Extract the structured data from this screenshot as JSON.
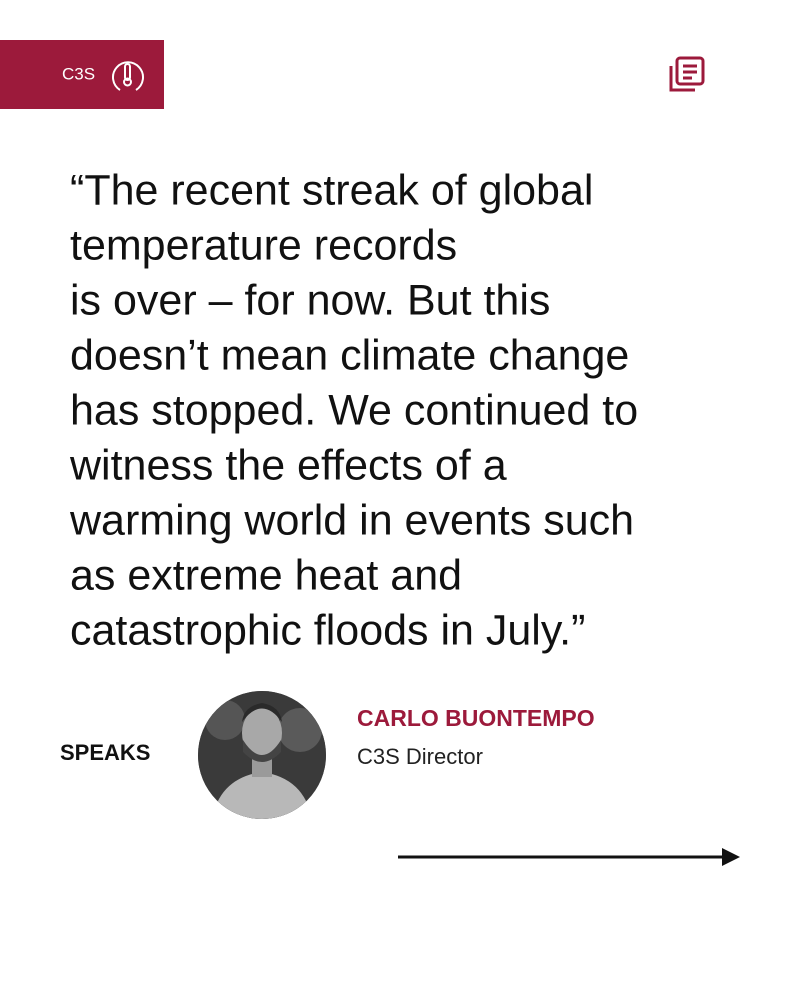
{
  "header": {
    "logo": "C3S"
  },
  "quote": {
    "lines": [
      "“The recent streak of global",
      "temperature records",
      "is over – for now. But this",
      "doesn’t mean climate change",
      "has stopped. We continued to",
      "witness the effects of a",
      "warming world in events such",
      "as extreme heat and",
      "catastrophic floods in July.”"
    ]
  },
  "speaker": {
    "tag": "SPEAKS",
    "name": "CARLO BUONTEMPO",
    "role": "C3S Director"
  }
}
